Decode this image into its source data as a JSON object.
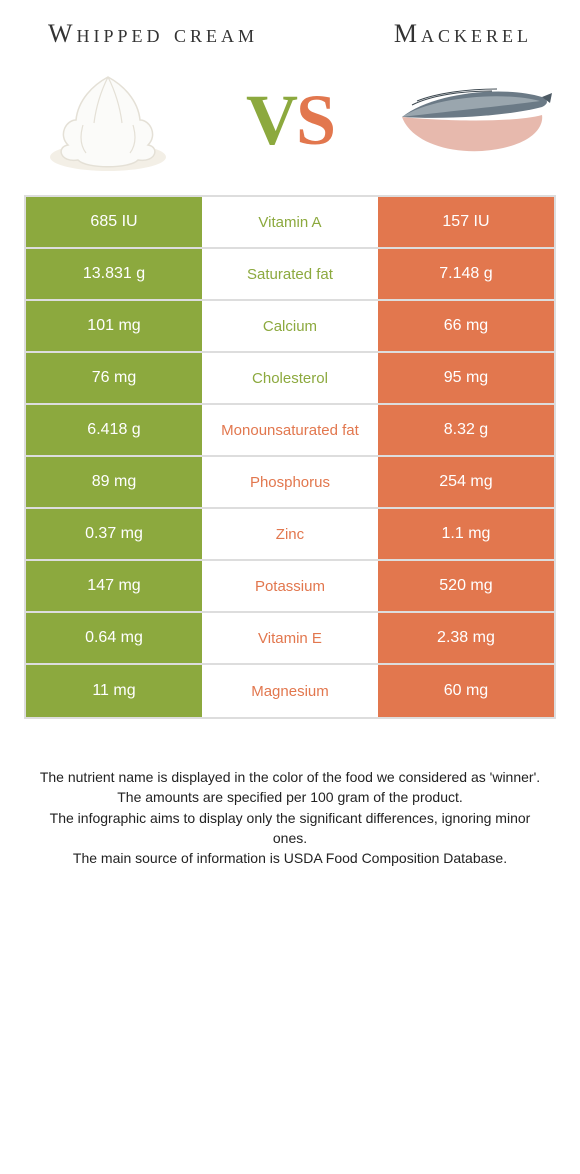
{
  "colors": {
    "left": "#8ca93e",
    "right": "#e2774e",
    "border": "#dddddd",
    "text": "#333333",
    "white": "#ffffff"
  },
  "header": {
    "left_title": "Whipped cream",
    "right_title": "Mackerel",
    "vs_v": "V",
    "vs_s": "S"
  },
  "table": {
    "rows": [
      {
        "left": "685 IU",
        "label": "Vitamin A",
        "right": "157 IU",
        "winner": "left"
      },
      {
        "left": "13.831 g",
        "label": "Saturated fat",
        "right": "7.148 g",
        "winner": "left"
      },
      {
        "left": "101 mg",
        "label": "Calcium",
        "right": "66 mg",
        "winner": "left"
      },
      {
        "left": "76 mg",
        "label": "Cholesterol",
        "right": "95 mg",
        "winner": "left"
      },
      {
        "left": "6.418 g",
        "label": "Monounsaturated fat",
        "right": "8.32 g",
        "winner": "right"
      },
      {
        "left": "89 mg",
        "label": "Phosphorus",
        "right": "254 mg",
        "winner": "right"
      },
      {
        "left": "0.37 mg",
        "label": "Zinc",
        "right": "1.1 mg",
        "winner": "right"
      },
      {
        "left": "147 mg",
        "label": "Potassium",
        "right": "520 mg",
        "winner": "right"
      },
      {
        "left": "0.64 mg",
        "label": "Vitamin E",
        "right": "2.38 mg",
        "winner": "right"
      },
      {
        "left": "11 mg",
        "label": "Magnesium",
        "right": "60 mg",
        "winner": "right"
      }
    ]
  },
  "footer": {
    "line1": "The nutrient name is displayed in the color of the food we considered as 'winner'.",
    "line2": "The amounts are specified per 100 gram of the product.",
    "line3": "The infographic aims to display only the significant differences, ignoring minor ones.",
    "line4": "The main source of information is USDA Food Composition Database."
  }
}
